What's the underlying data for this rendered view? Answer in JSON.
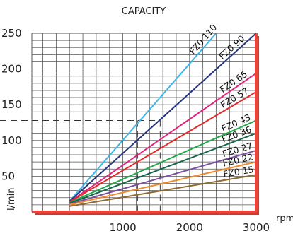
{
  "chart_data": {
    "type": "line",
    "title": "CAPACITY",
    "xlabel": "rpm",
    "ylabel": "l/min",
    "xlim": [
      0,
      3000
    ],
    "ylim": [
      0,
      250
    ],
    "x_ticks": [
      1000,
      2000,
      3000
    ],
    "y_ticks": [
      50,
      100,
      150,
      200,
      250
    ],
    "grid": true,
    "legend": "none",
    "reference_lines": [
      {
        "axis": "y",
        "value": 128
      },
      {
        "axis": "x",
        "value": 1220
      },
      {
        "axis": "x",
        "value": 1560
      }
    ],
    "series": [
      {
        "name": "FZ0 110",
        "color": "#3fb5e8",
        "x": [
          200,
          2400
        ],
        "y": [
          15,
          250
        ]
      },
      {
        "name": "FZ0 90",
        "color": "#27377f",
        "x": [
          200,
          3000
        ],
        "y": [
          15,
          250
        ]
      },
      {
        "name": "FZ0 65",
        "color": "#e0237e",
        "x": [
          200,
          3000
        ],
        "y": [
          14,
          194
        ]
      },
      {
        "name": "FZ0 57",
        "color": "#e32a2a",
        "x": [
          200,
          3000
        ],
        "y": [
          14,
          168
        ]
      },
      {
        "name": "FZ0 43",
        "color": "#22a84a",
        "x": [
          200,
          3000
        ],
        "y": [
          13,
          128
        ]
      },
      {
        "name": "FZ0 36",
        "color": "#17664a",
        "x": [
          200,
          3000
        ],
        "y": [
          12,
          110
        ]
      },
      {
        "name": "FZ0 27",
        "color": "#7b4fa0",
        "x": [
          200,
          3000
        ],
        "y": [
          11,
          86
        ]
      },
      {
        "name": "FZ0 22",
        "color": "#f18a2c",
        "x": [
          200,
          3000
        ],
        "y": [
          10,
          70
        ]
      },
      {
        "name": "FZ0 15",
        "color": "#8f6a35",
        "x": [
          200,
          3000
        ],
        "y": [
          8,
          52
        ]
      }
    ],
    "axis_color": "#e8453c"
  }
}
